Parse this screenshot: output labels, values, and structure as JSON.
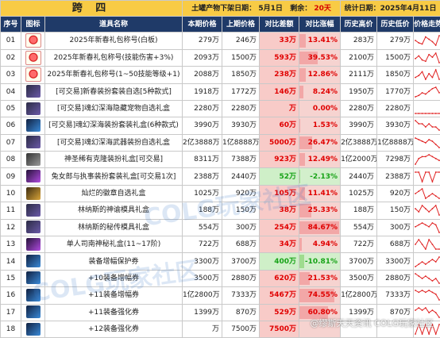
{
  "banner": {
    "title": "跨 四",
    "date_label": "土罐产物下架日期：",
    "date_value": "5月1日",
    "remain_label": "剩余：",
    "remain_value": "20天",
    "stat_date": "统计日期：2025年4月11日"
  },
  "columns": [
    "序号",
    "图标",
    "道具名称",
    "本期价格",
    "上期价格",
    "对比差额",
    "对比涨幅",
    "历史高价",
    "历史低价",
    "价格走势"
  ],
  "rows": [
    {
      "no": "01",
      "icon": "red-gift-icon",
      "name": "2025年新春礼包称号(白板)",
      "cur": "279万",
      "prev": "246万",
      "diff": "33万",
      "pct": "13.41%",
      "pctv": 13.41,
      "hi": "283万",
      "lo": "279万",
      "trend": [
        5,
        3,
        2,
        8,
        6,
        4,
        1,
        9
      ]
    },
    {
      "no": "02",
      "icon": "red-gift-icon",
      "name": "2025年新春礼包称号(技能伤害+3%)",
      "cur": "2093万",
      "prev": "1500万",
      "diff": "593万",
      "pct": "39.53%",
      "pctv": 39.53,
      "hi": "2100万",
      "lo": "1500万",
      "trend": [
        4,
        6,
        3,
        2,
        7,
        5,
        8,
        1
      ]
    },
    {
      "no": "03",
      "icon": "red-gift-icon",
      "name": "2025年新春礼包称号(1~50技能等级+1)",
      "cur": "2088万",
      "prev": "1850万",
      "diff": "238万",
      "pct": "12.86%",
      "pctv": 12.86,
      "hi": "2111万",
      "lo": "1850万",
      "trend": [
        3,
        4,
        6,
        2,
        5,
        3,
        7,
        2
      ]
    },
    {
      "no": "04",
      "icon": "dark-box-icon",
      "name": "[可交易]新春装扮套装自选[5种款式]",
      "cur": "1918万",
      "prev": "1772万",
      "diff": "146万",
      "pct": "8.24%",
      "pctv": 8.24,
      "hi": "1950万",
      "lo": "1770万",
      "trend": [
        2,
        3,
        5,
        4,
        6,
        8,
        9,
        5
      ]
    },
    {
      "no": "05",
      "icon": "dark-box-icon",
      "name": "[可交易]魂幻深海隐藏宠物自选礼盒",
      "cur": "2280万",
      "prev": "2280万",
      "diff": "万",
      "pct": "0.00%",
      "pctv": 0,
      "hi": "2280万",
      "lo": "2280万",
      "trend": [
        6,
        6,
        6,
        6,
        6,
        6,
        6,
        6
      ]
    },
    {
      "no": "06",
      "icon": "blue-box-icon",
      "name": "[可交易]魂幻深海装扮套装礼盒(6种款式)",
      "cur": "3990万",
      "prev": "3930万",
      "diff": "60万",
      "pct": "1.53%",
      "pctv": 1.53,
      "hi": "3990万",
      "lo": "3930万",
      "trend": [
        6,
        5,
        5,
        4,
        5,
        4,
        4,
        3
      ]
    },
    {
      "no": "07",
      "icon": "dark-box-icon",
      "name": "[可交易]魂幻深海武器装扮自选礼盒",
      "cur": "2亿3888万",
      "prev": "1亿8888万",
      "diff": "5000万",
      "pct": "26.47%",
      "pctv": 26.47,
      "hi": "2亿3888万",
      "lo": "1亿8888万",
      "trend": [
        7,
        6,
        5,
        4,
        6,
        5,
        3,
        1
      ]
    },
    {
      "no": "08",
      "icon": "grey-box-icon",
      "name": "神圣稀有克隆装扮礼盒[可交易]",
      "cur": "8311万",
      "prev": "7388万",
      "diff": "923万",
      "pct": "12.49%",
      "pctv": 12.49,
      "hi": "1亿2000万",
      "lo": "7298万",
      "trend": [
        1,
        4,
        5,
        5,
        6,
        5,
        4,
        3
      ]
    },
    {
      "no": "09",
      "icon": "purple-box-icon",
      "name": "兔女郎与执事装扮套装礼盒[可交易1次]",
      "cur": "2388万",
      "prev": "2440万",
      "diff": "52万",
      "pct": "-2.13%",
      "pctv": -2.13,
      "hi": "2440万",
      "lo": "2388万",
      "trend": [
        5,
        5,
        4,
        5,
        5,
        4,
        5,
        5
      ]
    },
    {
      "no": "10",
      "icon": "gold-box-icon",
      "name": "灿烂的徽章自选礼盒",
      "cur": "1025万",
      "prev": "920万",
      "diff": "105万",
      "pct": "11.41%",
      "pctv": 11.41,
      "hi": "1025万",
      "lo": "920万",
      "trend": [
        5,
        6,
        7,
        3,
        4,
        5,
        4,
        3
      ]
    },
    {
      "no": "11",
      "icon": "dark-box-icon",
      "name": "林纳斯的神谕模具礼盒",
      "cur": "188万",
      "prev": "150万",
      "diff": "38万",
      "pct": "25.33%",
      "pctv": 25.33,
      "hi": "188万",
      "lo": "150万",
      "trend": [
        5,
        4,
        6,
        5,
        4,
        5,
        6,
        3
      ]
    },
    {
      "no": "12",
      "icon": "dark-box-icon",
      "name": "林纳斯的秘传模具礼盒",
      "cur": "554万",
      "prev": "300万",
      "diff": "254万",
      "pct": "84.67%",
      "pctv": 84.67,
      "hi": "554万",
      "lo": "300万",
      "trend": [
        4,
        5,
        6,
        5,
        4,
        6,
        5,
        1
      ]
    },
    {
      "no": "13",
      "icon": "purple-box-icon",
      "name": "单人司南神秘礼盒(11~17阶)",
      "cur": "722万",
      "prev": "688万",
      "diff": "34万",
      "pct": "4.94%",
      "pctv": 4.94,
      "hi": "722万",
      "lo": "688万",
      "trend": [
        5,
        6,
        5,
        4,
        6,
        5,
        4,
        4
      ]
    },
    {
      "no": "14",
      "icon": "blue-box-icon",
      "name": "装备增幅保护券",
      "cur": "3300万",
      "prev": "3700万",
      "diff": "400万",
      "pct": "-10.81%",
      "pctv": -10.81,
      "hi": "3700万",
      "lo": "3300万",
      "trend": [
        3,
        4,
        5,
        4,
        5,
        6,
        5,
        7
      ]
    },
    {
      "no": "15",
      "icon": "blue-box-icon",
      "name": "+10装备增幅券",
      "cur": "3500万",
      "prev": "2880万",
      "diff": "620万",
      "pct": "21.53%",
      "pctv": 21.53,
      "hi": "3500万",
      "lo": "2880万",
      "trend": [
        6,
        5,
        4,
        5,
        4,
        3,
        4,
        2
      ]
    },
    {
      "no": "16",
      "icon": "blue-box-icon",
      "name": "+11装备增幅券",
      "cur": "1亿2800万",
      "prev": "7333万",
      "diff": "5467万",
      "pct": "74.55%",
      "pctv": 74.55,
      "hi": "1亿2800万",
      "lo": "7333万",
      "trend": [
        6,
        5,
        6,
        5,
        6,
        5,
        4,
        1
      ]
    },
    {
      "no": "17",
      "icon": "blue-box-icon",
      "name": "+11装备强化券",
      "cur": "1399万",
      "prev": "870万",
      "diff": "529万",
      "pct": "60.80%",
      "pctv": 60.8,
      "hi": "1399万",
      "lo": "870万",
      "trend": [
        5,
        6,
        5,
        6,
        4,
        5,
        4,
        2
      ]
    },
    {
      "no": "18",
      "icon": "blue-box-icon",
      "name": "+12装备强化券",
      "cur": "万",
      "prev": "7500万",
      "diff": "7500万",
      "pct": "",
      "pctv": 0,
      "hi": "",
      "lo": "",
      "trend": [
        4,
        5,
        4,
        5,
        4,
        5,
        4,
        5
      ]
    }
  ],
  "watermarks": [
    "COLG玩家社区",
    "COLG玩家社区"
  ],
  "corner_mark": "@缪斯天天资讯 COLG玩家社区"
}
